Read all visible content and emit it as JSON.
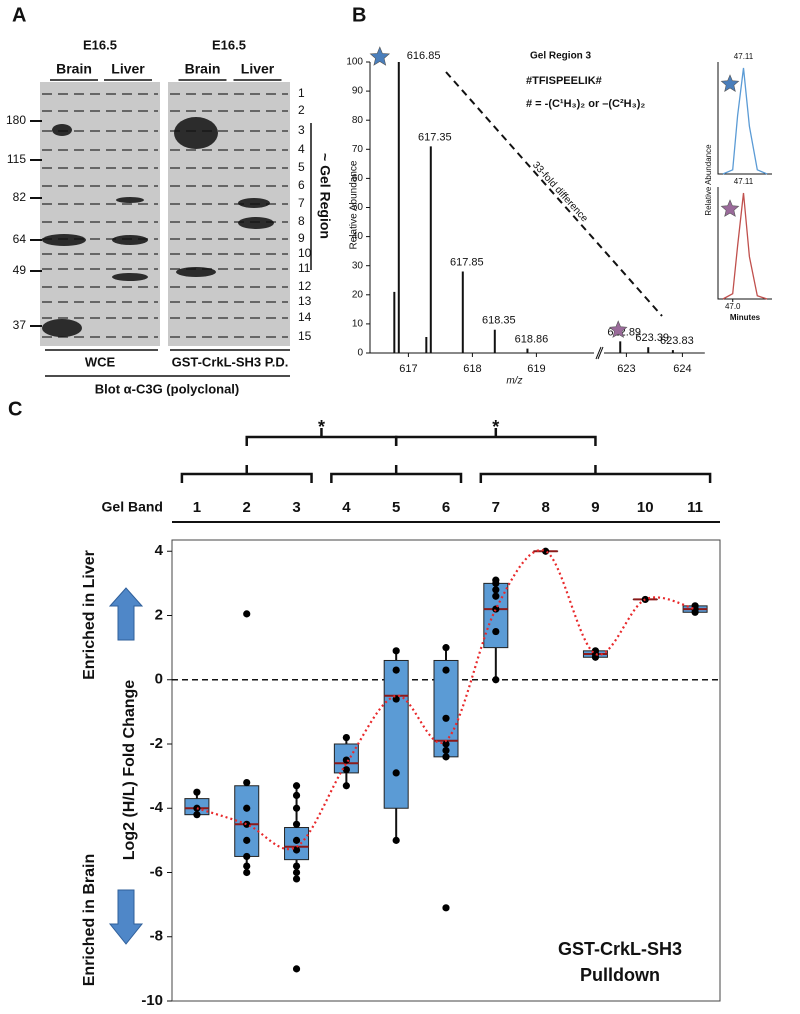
{
  "panel_a": {
    "label": "A",
    "groups": [
      {
        "stage": "E16.5",
        "lanes": [
          "Brain",
          "Liver"
        ]
      },
      {
        "stage": "E16.5",
        "lanes": [
          "Brain",
          "Liver"
        ]
      }
    ],
    "mw_markers": [
      180,
      115,
      82,
      64,
      49,
      37
    ],
    "gel_regions": [
      1,
      2,
      3,
      4,
      5,
      6,
      7,
      8,
      9,
      10,
      11,
      12,
      13,
      14,
      15
    ],
    "gel_region_label": "~ Gel Region",
    "samples": [
      "WCE",
      "GST-CrkL-SH3 P.D."
    ],
    "blot": "Blot α-C3G (polyclonal)"
  },
  "chart_data": [
    {
      "panel_label": "B",
      "type": "spectrum",
      "x_label": "m/z",
      "y_label": "Relative Abundance",
      "annotations": [
        "Gel Region 3",
        "#TFISPEELIK#",
        "# = -(C¹H₃)₂ or –(C²H₃)₂",
        "33-fold difference"
      ],
      "peaks": {
        "x": [
          616.85,
          617.35,
          617.85,
          618.35,
          618.86,
          622.89,
          623.39,
          623.83
        ],
        "values": [
          100,
          71,
          28,
          8,
          1.5,
          4,
          2,
          1
        ]
      },
      "minor_peaks": {
        "x": [
          616.78,
          617.28
        ],
        "values": [
          21,
          5.5
        ]
      },
      "xlim": [
        616.4,
        624.4
      ],
      "xbreak": [
        619.9,
        622.6
      ],
      "xticks": [
        617,
        618,
        619,
        623,
        624
      ],
      "ylim": [
        0,
        100
      ],
      "yticks": [
        0,
        10,
        20,
        30,
        40,
        50,
        60,
        70,
        80,
        90,
        100
      ],
      "light_color": "#4a7ebb",
      "heavy_color": "#9a6a9a",
      "inset": {
        "y_label": "Relative Abundance",
        "x_label": "Minutes",
        "xlim": [
          46.85,
          47.4
        ],
        "xticks": [
          {
            "value": 47.0,
            "label": "47.0"
          }
        ],
        "traces": [
          {
            "apex": 47.11,
            "color": "#5b9bd5",
            "x": [
              46.9,
              47.0,
              47.05,
              47.11,
              47.17,
              47.25,
              47.35
            ],
            "values": [
              0,
              4,
              55,
              100,
              45,
              4,
              0
            ]
          },
          {
            "apex": 47.11,
            "color": "#c0504d",
            "x": [
              46.9,
              47.0,
              47.05,
              47.11,
              47.17,
              47.25,
              47.35
            ],
            "values": [
              0,
              5,
              50,
              100,
              40,
              3,
              0
            ]
          }
        ]
      }
    },
    {
      "panel_label": "C",
      "type": "box",
      "x_label": "Gel Band",
      "y_label": "Log2 (H/L) Fold Change",
      "categories": [
        1,
        2,
        3,
        4,
        5,
        6,
        7,
        8,
        9,
        10,
        11
      ],
      "ylim": [
        -10,
        4.35
      ],
      "yticks": [
        -10,
        -8,
        -6,
        -4,
        -2,
        0,
        2,
        4
      ],
      "reference_line": 0,
      "box_color": "#5b9bd5",
      "trend_color": "#e8292b",
      "up_label": "Enriched in Liver",
      "down_label": "Enriched in Brain",
      "legend_text": [
        "GST-CrkL-SH3",
        "Pulldown"
      ],
      "comparisons": [
        "*",
        "*"
      ],
      "boxes": [
        {
          "whisker_low": -4.2,
          "q1": -4.2,
          "median": -4.0,
          "q3": -3.7,
          "whisker_high": -3.5,
          "points": [
            -3.5,
            -4.0,
            -4.2
          ]
        },
        {
          "whisker_low": -6.0,
          "q1": -5.5,
          "median": -4.5,
          "q3": -3.3,
          "whisker_high": -3.2,
          "points": [
            2.05,
            -3.2,
            -4.0,
            -4.5,
            -5.0,
            -5.5,
            -5.8,
            -6.0
          ]
        },
        {
          "whisker_low": -6.2,
          "q1": -5.6,
          "median": -5.2,
          "q3": -4.6,
          "whisker_high": -3.3,
          "points": [
            -3.3,
            -3.6,
            -4.0,
            -4.5,
            -5.0,
            -5.3,
            -5.8,
            -6.0,
            -6.2,
            -9.0
          ]
        },
        {
          "whisker_low": -3.3,
          "q1": -2.9,
          "median": -2.6,
          "q3": -2.0,
          "whisker_high": -1.7,
          "points": [
            -1.8,
            -2.5,
            -2.8,
            -3.3
          ]
        },
        {
          "whisker_low": -5.0,
          "q1": -4.0,
          "median": -0.5,
          "q3": 0.6,
          "whisker_high": 0.9,
          "points": [
            0.9,
            0.3,
            -0.6,
            -2.9,
            -5.0
          ]
        },
        {
          "whisker_low": -2.5,
          "q1": -2.4,
          "median": -1.9,
          "q3": 0.6,
          "whisker_high": 1.1,
          "points": [
            1.0,
            0.3,
            -1.2,
            -2.0,
            -2.2,
            -2.4,
            -7.1
          ]
        },
        {
          "whisker_low": 0.0,
          "q1": 1.0,
          "median": 2.2,
          "q3": 3.0,
          "whisker_high": 3.1,
          "points": [
            3.1,
            3.0,
            2.8,
            2.6,
            2.2,
            1.5,
            0.0
          ]
        },
        {
          "whisker_low": 4.0,
          "q1": 4.0,
          "median": 4.0,
          "q3": 4.0,
          "whisker_high": 4.0,
          "points": [
            4.0
          ]
        },
        {
          "whisker_low": 0.7,
          "q1": 0.7,
          "median": 0.8,
          "q3": 0.9,
          "whisker_high": 0.9,
          "points": [
            0.7,
            0.8,
            0.9
          ]
        },
        {
          "whisker_low": 2.5,
          "q1": 2.5,
          "median": 2.5,
          "q3": 2.5,
          "whisker_high": 2.5,
          "points": [
            2.5
          ]
        },
        {
          "whisker_low": 2.1,
          "q1": 2.1,
          "median": 2.2,
          "q3": 2.3,
          "whisker_high": 2.3,
          "points": [
            2.1,
            2.2,
            2.3
          ]
        }
      ]
    }
  ]
}
